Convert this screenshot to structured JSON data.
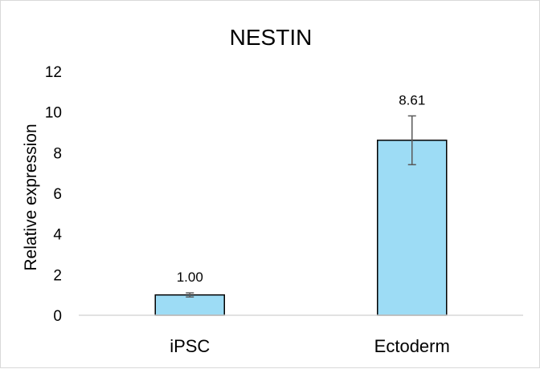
{
  "chart_data": {
    "type": "bar",
    "title": "NESTIN",
    "xlabel": "",
    "ylabel": "Relative expression",
    "categories": [
      "iPSC",
      "Ectoderm"
    ],
    "values": [
      1.0,
      8.61
    ],
    "value_labels": [
      "1.00",
      "8.61"
    ],
    "error": [
      0.1,
      1.2
    ],
    "ylim": [
      0,
      12
    ],
    "yticks": [
      0,
      2,
      4,
      6,
      8,
      10,
      12
    ],
    "ytick_labels": [
      "0",
      "2",
      "4",
      "6",
      "8",
      "10",
      "12"
    ],
    "grid": false,
    "legend": "none",
    "bar_color": "#9ddcf5",
    "bar_edge_color": "#000000",
    "error_color": "#595959"
  }
}
